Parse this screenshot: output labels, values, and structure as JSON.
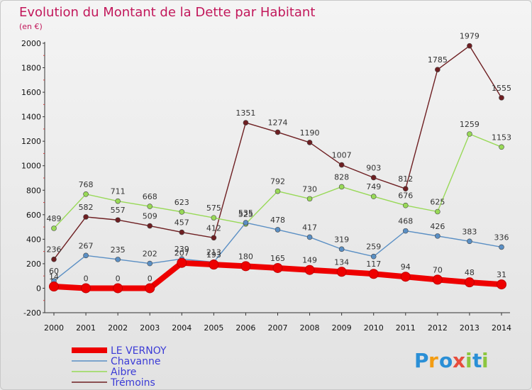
{
  "chart_data": {
    "type": "line",
    "title": "Evolution du Montant de la Dette par Habitant",
    "subtitle": "(en €)",
    "xlabel": "",
    "ylabel": "",
    "x": [
      "2000",
      "2001",
      "2002",
      "2003",
      "2004",
      "2005",
      "2006",
      "2007",
      "2008",
      "2009",
      "2010",
      "2011",
      "2012",
      "2013",
      "2014"
    ],
    "ylim": [
      -200,
      2000
    ],
    "yticks": [
      -200,
      0,
      200,
      400,
      600,
      800,
      1000,
      1200,
      1400,
      1600,
      1800,
      2000
    ],
    "grid": false,
    "legend_position": "bottom-left",
    "series": [
      {
        "name": "LE VERNOY",
        "color": "#ee0000",
        "values": [
          14,
          0,
          0,
          0,
          207,
          193,
          180,
          165,
          149,
          134,
          117,
          94,
          70,
          48,
          31
        ]
      },
      {
        "name": "Chavanne",
        "color": "#5a8fc4",
        "values": [
          60,
          267,
          235,
          202,
          239,
          213,
          535,
          478,
          417,
          319,
          259,
          468,
          426,
          383,
          336
        ]
      },
      {
        "name": "Aibre",
        "color": "#98d957",
        "values": [
          489,
          768,
          711,
          668,
          623,
          575,
          525,
          792,
          730,
          828,
          749,
          676,
          625,
          1259,
          1153
        ]
      },
      {
        "name": "Trémoins",
        "color": "#6e1f22",
        "values": [
          236,
          582,
          557,
          509,
          457,
          412,
          1351,
          1274,
          1190,
          1007,
          903,
          812,
          1785,
          1979,
          1555
        ]
      }
    ]
  },
  "logo": {
    "letters": [
      "P",
      "r",
      "o",
      "x",
      "i",
      "t",
      "i"
    ],
    "colors": [
      "#2a8fd6",
      "#f39c12",
      "#2a8fd6",
      "#e74c3c",
      "#8cc63f",
      "#2a8fd6",
      "#8cc63f"
    ]
  }
}
